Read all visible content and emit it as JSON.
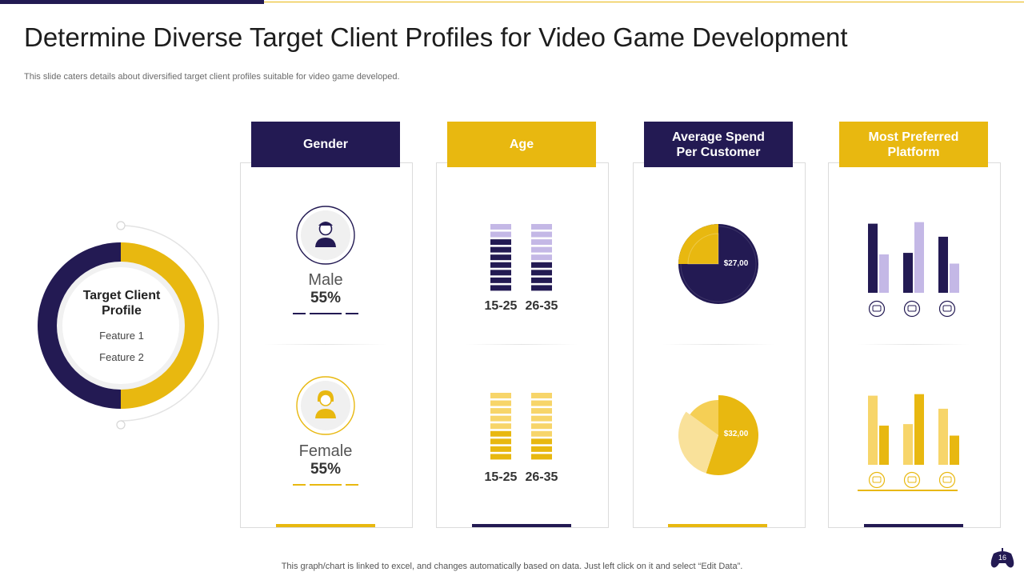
{
  "slide": {
    "title": "Determine Diverse Target Client Profiles for Video Game Development",
    "subtitle": "This slide caters details about diversified target client profiles suitable for video game developed.",
    "footnote": "This graph/chart is linked to excel,  and changes automatically based on data. Just left click on it and select “Edit Data”.",
    "slide_number": "16"
  },
  "colors": {
    "navy": "#231a53",
    "gold": "#e8b810",
    "lavender": "#c4b8e6",
    "light_gold": "#f7d56a"
  },
  "profile": {
    "title": "Target Client Profile",
    "features": [
      "Feature 1",
      "Feature 2"
    ],
    "navy_share": 0.5,
    "gold_share": 0.5
  },
  "gender": {
    "header": "Gender",
    "male": {
      "label": "Male",
      "percent": "55%",
      "icon": "male-avatar-icon"
    },
    "female": {
      "label": "Female",
      "percent": "55%",
      "icon": "female-avatar-icon"
    }
  },
  "age": {
    "header": "Age",
    "top": {
      "groups": [
        {
          "label": "15-25",
          "filled": 7,
          "total": 9
        },
        {
          "label": "26-35",
          "filled": 4,
          "total": 9
        }
      ]
    },
    "bottom": {
      "groups": [
        {
          "label": "15-25",
          "filled": 4,
          "total": 9
        },
        {
          "label": "26-35",
          "filled": 3,
          "total": 9
        }
      ]
    }
  },
  "spend": {
    "header": "Average Spend Per Customer",
    "top_pie": {
      "label": "$27,00",
      "slices": [
        0.75,
        0.25
      ]
    },
    "bottom_pie": {
      "label": "$32,00",
      "slices": [
        0.55,
        0.3,
        0.15
      ]
    }
  },
  "platform": {
    "header": "Most Preferred Platform",
    "icons": [
      "console-icon",
      "gamepad-icon",
      "monitor-icon"
    ],
    "top_chart": {
      "series": [
        {
          "values": [
            90,
            52,
            73
          ]
        },
        {
          "values": [
            50,
            92,
            38
          ]
        }
      ]
    },
    "bottom_chart": {
      "series": [
        {
          "values": [
            90,
            53,
            73
          ]
        },
        {
          "values": [
            51,
            92,
            38
          ]
        }
      ]
    }
  }
}
